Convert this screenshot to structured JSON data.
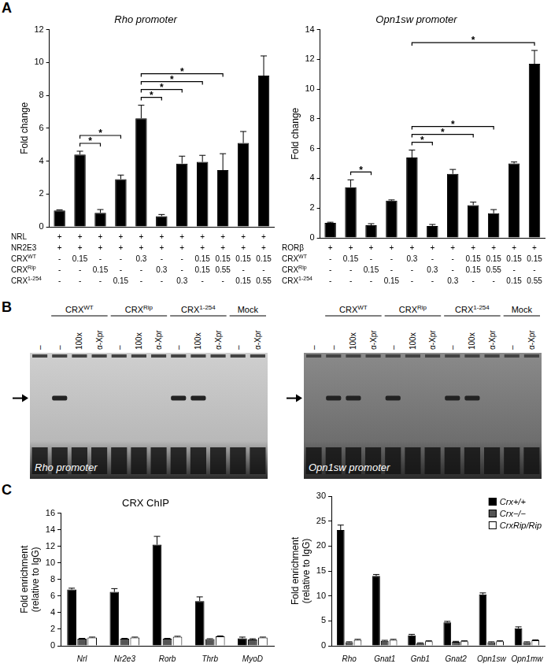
{
  "panel_labels": [
    "A",
    "B",
    "C"
  ],
  "chart_data": [
    {
      "type": "bar",
      "title": "Rho promoter",
      "categories": [
        null,
        null,
        null,
        null,
        null,
        null,
        null,
        null,
        null,
        null,
        null
      ],
      "values": [
        1.0,
        4.4,
        0.85,
        2.9,
        6.6,
        0.65,
        3.85,
        3.95,
        3.45,
        5.1,
        9.2
      ],
      "errors": [
        0.03,
        0.2,
        0.2,
        0.25,
        0.8,
        0.1,
        0.45,
        0.4,
        1.0,
        0.7,
        1.2
      ],
      "color": "#000000",
      "y_label": "Fold change",
      "ylim": [
        0,
        12
      ],
      "yticks": [
        0,
        2,
        4,
        6,
        8,
        10,
        12
      ],
      "grid": false,
      "tick_labels": "y",
      "significance": [
        {
          "bars": [
            2,
            3
          ],
          "label": "*"
        },
        {
          "bars": [
            2,
            4
          ],
          "label": "*"
        },
        {
          "bars": [
            5,
            6
          ],
          "label": "*"
        },
        {
          "bars": [
            5,
            7
          ],
          "label": "*"
        },
        {
          "bars": [
            5,
            8
          ],
          "label": "*"
        },
        {
          "bars": [
            5,
            9
          ],
          "label": "*"
        }
      ],
      "conditions": [
        {
          "label": "NRL",
          "values": [
            "+",
            "+",
            "+",
            "+",
            "+",
            "+",
            "+",
            "+",
            "+",
            "+",
            "+"
          ]
        },
        {
          "label": "NR2E3",
          "values": [
            "+",
            "+",
            "+",
            "+",
            "+",
            "+",
            "+",
            "+",
            "+",
            "+",
            "+"
          ]
        },
        {
          "label": "CRX",
          "superscript": "WT",
          "values": [
            "-",
            "0.15",
            "-",
            "-",
            "0.3",
            "-",
            "-",
            "0.15",
            "0.15",
            "0.15",
            "0.15"
          ]
        },
        {
          "label": "CRX",
          "superscript": "Rip",
          "values": [
            "-",
            "-",
            "0.15",
            "-",
            "-",
            "0.3",
            "-",
            "0.15",
            "0.55",
            "-",
            "-"
          ]
        },
        {
          "label": "CRX",
          "superscript": "1-254",
          "values": [
            "-",
            "-",
            "-",
            "0.15",
            "-",
            "-",
            "0.3",
            "-",
            "-",
            "0.15",
            "0.55"
          ]
        }
      ]
    },
    {
      "type": "bar",
      "title": "Opn1sw promoter",
      "categories": [
        null,
        null,
        null,
        null,
        null,
        null,
        null,
        null,
        null,
        null,
        null
      ],
      "values": [
        1.0,
        3.4,
        0.85,
        2.5,
        5.4,
        0.8,
        4.3,
        2.2,
        1.65,
        5.0,
        11.7
      ],
      "errors": [
        0.05,
        0.5,
        0.1,
        0.05,
        0.5,
        0.1,
        0.3,
        0.2,
        0.25,
        0.1,
        0.9
      ],
      "color": "#000000",
      "y_label": "Fold change",
      "ylim": [
        0,
        14
      ],
      "yticks": [
        0,
        2,
        4,
        6,
        8,
        10,
        12,
        14
      ],
      "grid": false,
      "tick_labels": "y",
      "significance": [
        {
          "bars": [
            2,
            3
          ],
          "label": "*"
        },
        {
          "bars": [
            5,
            6
          ],
          "label": "*"
        },
        {
          "bars": [
            5,
            8
          ],
          "label": "*"
        },
        {
          "bars": [
            5,
            9
          ],
          "label": "*"
        },
        {
          "bars": [
            5,
            11
          ],
          "label": "*"
        }
      ],
      "conditions": [
        {
          "label": "RORβ",
          "values": [
            "+",
            "+",
            "+",
            "+",
            "+",
            "+",
            "+",
            "+",
            "+",
            "+",
            "+"
          ]
        },
        {
          "label": "CRX",
          "superscript": "WT",
          "values": [
            "-",
            "0.15",
            "-",
            "-",
            "0.3",
            "-",
            "-",
            "0.15",
            "0.15",
            "0.15",
            "0.15"
          ]
        },
        {
          "label": "CRX",
          "superscript": "Rip",
          "values": [
            "-",
            "-",
            "0.15",
            "-",
            "-",
            "0.3",
            "-",
            "0.15",
            "0.55",
            "-",
            "-"
          ]
        },
        {
          "label": "CRX",
          "superscript": "1-254",
          "values": [
            "-",
            "-",
            "-",
            "0.15",
            "-",
            "-",
            "0.3",
            "-",
            "-",
            "0.15",
            "0.55"
          ]
        }
      ]
    },
    {
      "type": "bar",
      "title": "CRX ChIP",
      "categories": [
        "Nrl",
        "Nr2e3",
        "Rorb",
        "Thrb",
        "MyoD"
      ],
      "series": [
        {
          "name": "Crx+/+",
          "color": "#000000",
          "values": [
            6.8,
            6.5,
            12.2,
            5.4,
            0.9
          ],
          "errors": [
            0.15,
            0.4,
            1.0,
            0.5,
            0.15
          ]
        },
        {
          "name": "Crx−/−",
          "color": "#555555",
          "values": [
            0.85,
            0.85,
            0.85,
            0.8,
            0.75
          ],
          "errors": [
            0.05,
            0.05,
            0.05,
            0.05,
            0.1
          ]
        },
        {
          "name": "CrxRip/Rip",
          "color": "#ffffff",
          "values": [
            1.0,
            1.0,
            1.1,
            1.15,
            1.0
          ],
          "errors": [
            0.05,
            0.05,
            0.05,
            0.05,
            0.05
          ]
        }
      ],
      "y_label": [
        "Fold enrichment",
        "(relative to IgG)"
      ],
      "ylim": [
        0,
        16
      ],
      "yticks": [
        0,
        2,
        4,
        6,
        8,
        10,
        12,
        14,
        16
      ],
      "grid": false
    },
    {
      "type": "bar",
      "categories": [
        "Rho",
        "Gnat1",
        "Gnb1",
        "Gnat2",
        "Opn1sw",
        "Opn1mw"
      ],
      "series": [
        {
          "name": "Crx+/+",
          "color": "#000000",
          "values": [
            23.2,
            14.0,
            2.1,
            4.7,
            10.3,
            3.5
          ],
          "errors": [
            1.0,
            0.3,
            0.2,
            0.2,
            0.3,
            0.3
          ]
        },
        {
          "name": "Crx−/−",
          "color": "#555555",
          "values": [
            0.7,
            1.0,
            0.5,
            0.8,
            0.7,
            0.7
          ],
          "errors": [
            0.1,
            0.1,
            0.1,
            0.1,
            0.1,
            0.1
          ]
        },
        {
          "name": "CrxRip/Rip",
          "color": "#ffffff",
          "values": [
            1.2,
            1.2,
            0.9,
            0.9,
            0.9,
            1.1
          ],
          "errors": [
            0.1,
            0.1,
            0.1,
            0.1,
            0.1,
            0.1
          ]
        }
      ],
      "y_label": [
        "Fold enrichment",
        "(relative to IgG)"
      ],
      "ylim": [
        0,
        30
      ],
      "yticks": [
        0,
        5,
        10,
        15,
        20,
        25,
        30
      ],
      "grid": false,
      "legend": "top-right"
    }
  ],
  "gels": [
    {
      "title": "Rho promoter",
      "free_lanes": [
        {
          "text": "–",
          "shifted_band": false
        }
      ],
      "groups": [
        {
          "label": "CRX",
          "superscript": "WT",
          "lanes": [
            {
              "text": "–",
              "shifted_band": true
            },
            {
              "text": "100x",
              "shifted_band": false
            },
            {
              "text": "α-Xpr",
              "shifted_band": false
            }
          ]
        },
        {
          "label": "CRX",
          "superscript": "Rip",
          "lanes": [
            {
              "text": "–",
              "shifted_band": false
            },
            {
              "text": "100x",
              "shifted_band": false
            },
            {
              "text": "α-Xpr",
              "shifted_band": false
            }
          ]
        },
        {
          "label": "CRX",
          "superscript": "1-254",
          "lanes": [
            {
              "text": "–",
              "shifted_band": true
            },
            {
              "text": "100x",
              "shifted_band": true
            },
            {
              "text": "α-Xpr",
              "shifted_band": false
            }
          ]
        },
        {
          "label": "Mock",
          "lanes": [
            {
              "text": "–",
              "shifted_band": false
            },
            {
              "text": "α-Xpr",
              "shifted_band": false
            }
          ]
        }
      ]
    },
    {
      "title": "Opn1sw promoter",
      "free_lanes": [
        {
          "text": "–",
          "shifted_band": false
        }
      ],
      "groups": [
        {
          "label": "CRX",
          "superscript": "WT",
          "lanes": [
            {
              "text": "–",
              "shifted_band": true
            },
            {
              "text": "100x",
              "shifted_band": true
            },
            {
              "text": "α-Xpr",
              "shifted_band": false
            }
          ]
        },
        {
          "label": "CRX",
          "superscript": "Rip",
          "lanes": [
            {
              "text": "–",
              "shifted_band": true
            },
            {
              "text": "100x",
              "shifted_band": false
            },
            {
              "text": "α-Xpr",
              "shifted_band": false
            }
          ]
        },
        {
          "label": "CRX",
          "superscript": "1-254",
          "lanes": [
            {
              "text": "–",
              "shifted_band": true
            },
            {
              "text": "100x",
              "shifted_band": true
            },
            {
              "text": "α-Xpr",
              "shifted_band": false
            }
          ]
        },
        {
          "label": "Mock",
          "lanes": [
            {
              "text": "–",
              "shifted_band": false
            },
            {
              "text": "α-Xpr",
              "shifted_band": false
            }
          ]
        }
      ]
    }
  ]
}
